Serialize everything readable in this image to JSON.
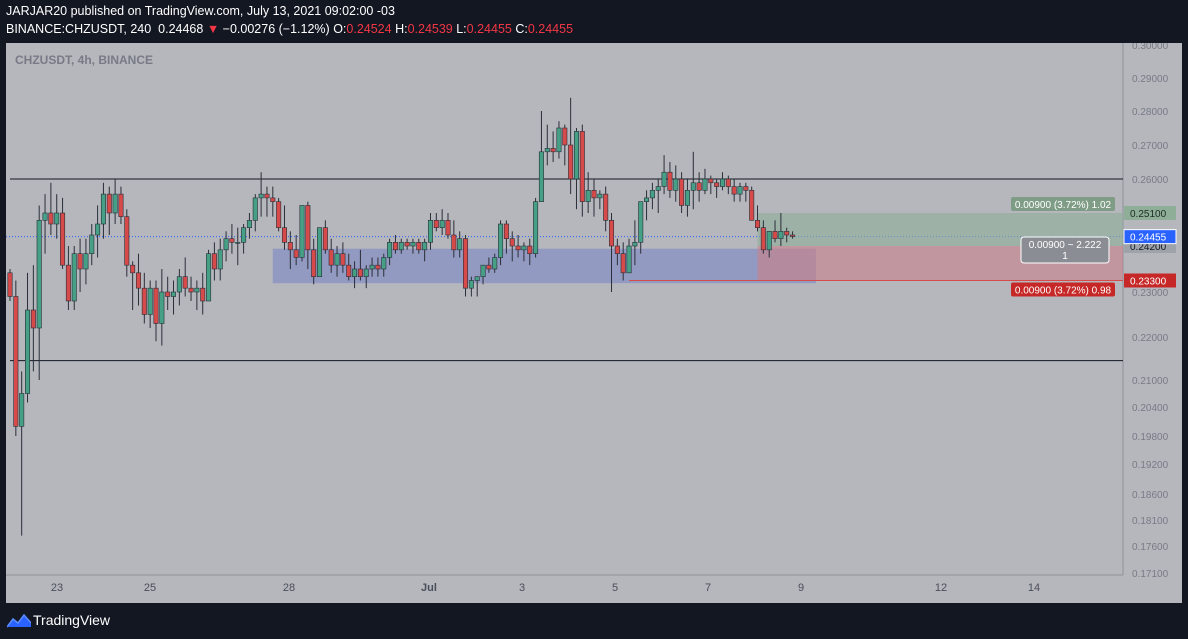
{
  "header": {
    "line1": "JARJAR20 published on TradingView.com, July 13, 2021 09:02:00 -03",
    "symbol": "BINANCE:CHZUSDT, 240",
    "last": "0.24468",
    "arrow": "▼",
    "change": "−0.00276 (−1.12%)",
    "o_label": "O:",
    "o_value": "0.24524",
    "h_label": "H:",
    "h_value": "0.24539",
    "l_label": "L:",
    "l_value": "0.24455",
    "c_label": "C:",
    "c_value": "0.24455"
  },
  "chart_title": "CHZUSDT, 4h, BINANCE",
  "footer": {
    "brand": "TradingView",
    "logo_icon": "tradingview-logo-icon"
  },
  "colors": {
    "up": "#45a085",
    "down": "#d64a4a",
    "zone": "#7784c4",
    "background": "#b5b7bd"
  },
  "chart_data": {
    "type": "candlestick",
    "price_axis_ticks": [
      "0.30000",
      "0.29000",
      "0.28000",
      "0.27000",
      "0.26000",
      "0.25100",
      "0.24200",
      "0.23000",
      "0.22000",
      "0.21000",
      "0.20400",
      "0.19800",
      "0.19200",
      "0.18600",
      "0.18100",
      "0.17600",
      "0.17100"
    ],
    "time_axis_ticks": [
      "23",
      "25",
      "28",
      "Jul",
      "3",
      "5",
      "7",
      "9",
      "12",
      "14"
    ],
    "current_price": "0.24455",
    "horizontal_lines": [
      0.26,
      0.2145
    ],
    "support_zone": {
      "top": 0.2413,
      "bottom": 0.2323
    },
    "position": {
      "entry": 0.242,
      "target": 0.251,
      "stop": 0.233,
      "target_label": "0.00900 (3.72%) 1.02",
      "stop_label": "0.00900 (3.72%) 0.98",
      "ratio_label_line1": "0.00900 ~ 2.222",
      "ratio_label_line2": "1"
    },
    "target_price_label": "0.25100",
    "entry_price_label": "0.24200",
    "stop_price_label": "0.23300",
    "candles": [
      [
        0.235,
        0.236,
        0.228,
        0.229
      ],
      [
        0.229,
        0.233,
        0.198,
        0.2
      ],
      [
        0.2,
        0.212,
        0.178,
        0.207
      ],
      [
        0.207,
        0.235,
        0.205,
        0.226
      ],
      [
        0.226,
        0.237,
        0.212,
        0.222
      ],
      [
        0.222,
        0.253,
        0.21,
        0.249
      ],
      [
        0.249,
        0.256,
        0.24,
        0.251
      ],
      [
        0.251,
        0.259,
        0.245,
        0.248
      ],
      [
        0.248,
        0.256,
        0.244,
        0.251
      ],
      [
        0.251,
        0.255,
        0.236,
        0.237
      ],
      [
        0.237,
        0.242,
        0.226,
        0.228
      ],
      [
        0.228,
        0.242,
        0.226,
        0.24
      ],
      [
        0.24,
        0.244,
        0.23,
        0.236
      ],
      [
        0.236,
        0.244,
        0.232,
        0.24
      ],
      [
        0.24,
        0.248,
        0.237,
        0.245
      ],
      [
        0.245,
        0.253,
        0.239,
        0.248
      ],
      [
        0.248,
        0.259,
        0.244,
        0.256
      ],
      [
        0.256,
        0.258,
        0.245,
        0.251
      ],
      [
        0.251,
        0.26,
        0.248,
        0.256
      ],
      [
        0.256,
        0.258,
        0.248,
        0.25
      ],
      [
        0.25,
        0.252,
        0.234,
        0.237
      ],
      [
        0.237,
        0.238,
        0.226,
        0.235
      ],
      [
        0.235,
        0.24,
        0.227,
        0.231
      ],
      [
        0.231,
        0.235,
        0.223,
        0.225
      ],
      [
        0.225,
        0.233,
        0.222,
        0.231
      ],
      [
        0.231,
        0.233,
        0.219,
        0.223
      ],
      [
        0.223,
        0.236,
        0.218,
        0.23
      ],
      [
        0.23,
        0.234,
        0.226,
        0.229
      ],
      [
        0.229,
        0.233,
        0.225,
        0.23
      ],
      [
        0.23,
        0.236,
        0.227,
        0.234
      ],
      [
        0.234,
        0.239,
        0.229,
        0.231
      ],
      [
        0.231,
        0.234,
        0.228,
        0.23
      ],
      [
        0.23,
        0.233,
        0.226,
        0.231
      ],
      [
        0.231,
        0.235,
        0.225,
        0.228
      ],
      [
        0.228,
        0.241,
        0.228,
        0.24
      ],
      [
        0.24,
        0.243,
        0.233,
        0.236
      ],
      [
        0.236,
        0.244,
        0.233,
        0.241
      ],
      [
        0.241,
        0.246,
        0.238,
        0.244
      ],
      [
        0.244,
        0.248,
        0.24,
        0.243
      ],
      [
        0.243,
        0.247,
        0.237,
        0.243
      ],
      [
        0.243,
        0.248,
        0.24,
        0.247
      ],
      [
        0.247,
        0.251,
        0.244,
        0.249
      ],
      [
        0.249,
        0.256,
        0.246,
        0.255
      ],
      [
        0.255,
        0.262,
        0.25,
        0.256
      ],
      [
        0.256,
        0.258,
        0.25,
        0.255
      ],
      [
        0.255,
        0.258,
        0.25,
        0.254
      ],
      [
        0.254,
        0.255,
        0.246,
        0.247
      ],
      [
        0.247,
        0.253,
        0.241,
        0.243
      ],
      [
        0.243,
        0.246,
        0.236,
        0.241
      ],
      [
        0.241,
        0.245,
        0.237,
        0.239
      ],
      [
        0.239,
        0.253,
        0.238,
        0.253
      ],
      [
        0.253,
        0.254,
        0.236,
        0.241
      ],
      [
        0.241,
        0.244,
        0.232,
        0.234
      ],
      [
        0.234,
        0.247,
        0.234,
        0.247
      ],
      [
        0.247,
        0.249,
        0.24,
        0.241
      ],
      [
        0.241,
        0.244,
        0.235,
        0.237
      ],
      [
        0.237,
        0.242,
        0.234,
        0.24
      ],
      [
        0.24,
        0.243,
        0.235,
        0.237
      ],
      [
        0.237,
        0.24,
        0.233,
        0.234
      ],
      [
        0.234,
        0.238,
        0.231,
        0.236
      ],
      [
        0.236,
        0.241,
        0.233,
        0.234
      ],
      [
        0.234,
        0.237,
        0.231,
        0.236
      ],
      [
        0.236,
        0.239,
        0.234,
        0.237
      ],
      [
        0.237,
        0.239,
        0.234,
        0.236
      ],
      [
        0.236,
        0.24,
        0.234,
        0.239
      ],
      [
        0.239,
        0.244,
        0.237,
        0.243
      ],
      [
        0.243,
        0.245,
        0.24,
        0.241
      ],
      [
        0.241,
        0.244,
        0.24,
        0.243
      ],
      [
        0.243,
        0.244,
        0.241,
        0.242
      ],
      [
        0.242,
        0.244,
        0.24,
        0.243
      ],
      [
        0.243,
        0.244,
        0.24,
        0.241
      ],
      [
        0.241,
        0.244,
        0.238,
        0.243
      ],
      [
        0.243,
        0.251,
        0.241,
        0.249
      ],
      [
        0.249,
        0.251,
        0.246,
        0.247
      ],
      [
        0.247,
        0.252,
        0.245,
        0.249
      ],
      [
        0.249,
        0.251,
        0.244,
        0.245
      ],
      [
        0.245,
        0.249,
        0.239,
        0.241
      ],
      [
        0.241,
        0.246,
        0.239,
        0.244
      ],
      [
        0.244,
        0.245,
        0.229,
        0.231
      ],
      [
        0.231,
        0.234,
        0.229,
        0.233
      ],
      [
        0.233,
        0.234,
        0.229,
        0.234
      ],
      [
        0.234,
        0.237,
        0.232,
        0.237
      ],
      [
        0.237,
        0.239,
        0.235,
        0.236
      ],
      [
        0.236,
        0.24,
        0.235,
        0.239
      ],
      [
        0.239,
        0.249,
        0.237,
        0.248
      ],
      [
        0.248,
        0.249,
        0.24,
        0.244
      ],
      [
        0.244,
        0.246,
        0.238,
        0.242
      ],
      [
        0.242,
        0.245,
        0.239,
        0.241
      ],
      [
        0.241,
        0.243,
        0.238,
        0.242
      ],
      [
        0.242,
        0.244,
        0.237,
        0.24
      ],
      [
        0.24,
        0.255,
        0.239,
        0.254
      ],
      [
        0.254,
        0.28,
        0.254,
        0.268
      ],
      [
        0.268,
        0.276,
        0.264,
        0.269
      ],
      [
        0.269,
        0.274,
        0.265,
        0.268
      ],
      [
        0.268,
        0.277,
        0.266,
        0.275
      ],
      [
        0.275,
        0.276,
        0.264,
        0.27
      ],
      [
        0.27,
        0.284,
        0.256,
        0.26
      ],
      [
        0.26,
        0.275,
        0.252,
        0.274
      ],
      [
        0.274,
        0.276,
        0.25,
        0.254
      ],
      [
        0.254,
        0.262,
        0.251,
        0.257
      ],
      [
        0.257,
        0.26,
        0.25,
        0.255
      ],
      [
        0.255,
        0.257,
        0.252,
        0.256
      ],
      [
        0.256,
        0.258,
        0.246,
        0.249
      ],
      [
        0.249,
        0.251,
        0.23,
        0.242
      ],
      [
        0.242,
        0.244,
        0.237,
        0.24
      ],
      [
        0.24,
        0.243,
        0.233,
        0.235
      ],
      [
        0.235,
        0.244,
        0.235,
        0.242
      ],
      [
        0.242,
        0.249,
        0.237,
        0.243
      ],
      [
        0.243,
        0.254,
        0.24,
        0.254
      ],
      [
        0.254,
        0.257,
        0.249,
        0.255
      ],
      [
        0.255,
        0.259,
        0.252,
        0.257
      ],
      [
        0.257,
        0.26,
        0.251,
        0.258
      ],
      [
        0.258,
        0.267,
        0.256,
        0.262
      ],
      [
        0.262,
        0.265,
        0.255,
        0.257
      ],
      [
        0.257,
        0.264,
        0.254,
        0.26
      ],
      [
        0.26,
        0.262,
        0.251,
        0.253
      ],
      [
        0.253,
        0.26,
        0.25,
        0.257
      ],
      [
        0.257,
        0.268,
        0.252,
        0.259
      ],
      [
        0.259,
        0.262,
        0.254,
        0.257
      ],
      [
        0.257,
        0.263,
        0.256,
        0.26
      ],
      [
        0.26,
        0.261,
        0.256,
        0.259
      ],
      [
        0.259,
        0.26,
        0.255,
        0.258
      ],
      [
        0.258,
        0.262,
        0.257,
        0.26
      ],
      [
        0.26,
        0.261,
        0.256,
        0.258
      ],
      [
        0.258,
        0.26,
        0.254,
        0.256
      ],
      [
        0.256,
        0.259,
        0.254,
        0.258
      ],
      [
        0.258,
        0.259,
        0.254,
        0.257
      ],
      [
        0.257,
        0.258,
        0.249,
        0.249
      ],
      [
        0.249,
        0.253,
        0.246,
        0.247
      ],
      [
        0.247,
        0.249,
        0.24,
        0.241
      ],
      [
        0.241,
        0.246,
        0.239,
        0.246
      ],
      [
        0.246,
        0.249,
        0.243,
        0.244
      ],
      [
        0.244,
        0.251,
        0.242,
        0.246
      ],
      [
        0.246,
        0.247,
        0.243,
        0.245
      ],
      [
        0.245,
        0.246,
        0.244,
        0.2446
      ]
    ]
  }
}
